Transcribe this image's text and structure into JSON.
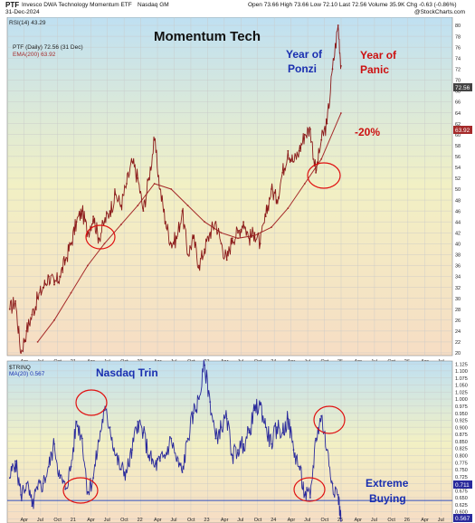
{
  "header": {
    "symbol": "PTF",
    "security_name": "Invesco DWA Technology Momentum ETF",
    "exchange": "Nasdaq GM",
    "date": "31-Dec-2024",
    "stats": "Open 73.66  High 73.66  Low 72.10  Last 72.56  Volume 35.9K  Chg -0.63 (-0.86%)",
    "credit": "@StockCharts.com"
  },
  "top_panel": {
    "rsi_label": "RSI(14) 43.29",
    "ptf_label": "PTF (Daily) 72.56 (31 Dec)",
    "ema_label": "EMA(200) 63.92",
    "price_tag": "72.56",
    "ema_tag": "63.92"
  },
  "bottom_panel": {
    "trin_label": "$TRINQ",
    "ma_label": "MA(20) 0.567",
    "last_tag": "0.711",
    "low_tag": "0.567"
  },
  "annotations": {
    "title": "Momentum Tech",
    "year_of_ponzi_1": "Year of",
    "year_of_ponzi_2": "Ponzi",
    "year_of_panic_1": "Year of",
    "year_of_panic_2": "Panic",
    "minus20": "-20%",
    "nasdaq_trin": "Nasdaq Trin",
    "extreme": "Extreme",
    "buying": "Buying"
  },
  "colors": {
    "price_line": "#8b1a1a",
    "ema_line": "#a52a2a",
    "trin_line": "#2a2a9c",
    "circle": "#e01010",
    "blue_text": "#1a2fb0",
    "red_text": "#cc1111",
    "hline": "#3050c0"
  },
  "chart_data": [
    {
      "type": "line",
      "title": "Momentum Tech",
      "x_ticks": [
        "Apr",
        "Jul",
        "Oct",
        "21",
        "Apr",
        "Jul",
        "Oct",
        "22",
        "Apr",
        "Jul",
        "Oct",
        "23",
        "Apr",
        "Jul",
        "Oct",
        "24",
        "Apr",
        "Jul",
        "Oct",
        "25",
        "Apr",
        "Jul",
        "Oct",
        "26",
        "Apr",
        "Jul"
      ],
      "y_ticks": [
        20,
        22,
        24,
        26,
        28,
        30,
        32,
        34,
        36,
        38,
        40,
        42,
        44,
        46,
        48,
        50,
        52,
        54,
        56,
        58,
        60,
        62,
        64,
        66,
        68,
        70,
        72,
        74,
        76,
        78,
        80
      ],
      "ylim": [
        19.5,
        81.5
      ],
      "x_range": [
        "2020-01",
        "2026-09"
      ],
      "series": [
        {
          "name": "PTF (Daily)",
          "points": [
            [
              "2020-01",
              28
            ],
            [
              "2020-02",
              29.5
            ],
            [
              "2020-03",
              20
            ],
            [
              "2020-04",
              24
            ],
            [
              "2020-05",
              27
            ],
            [
              "2020-06",
              30
            ],
            [
              "2020-07",
              32
            ],
            [
              "2020-08",
              34
            ],
            [
              "2020-09",
              32.5
            ],
            [
              "2020-10",
              34
            ],
            [
              "2020-11",
              37
            ],
            [
              "2020-12",
              40
            ],
            [
              "2021-01",
              44
            ],
            [
              "2021-02",
              46
            ],
            [
              "2021-03",
              42
            ],
            [
              "2021-04",
              45
            ],
            [
              "2021-05",
              41
            ],
            [
              "2021-06",
              44
            ],
            [
              "2021-07",
              46
            ],
            [
              "2021-08",
              49
            ],
            [
              "2021-09",
              47
            ],
            [
              "2021-10",
              51
            ],
            [
              "2021-11",
              55
            ],
            [
              "2021-12",
              52
            ],
            [
              "2022-01",
              46
            ],
            [
              "2022-02",
              52
            ],
            [
              "2022-03",
              59
            ],
            [
              "2022-04",
              50
            ],
            [
              "2022-05",
              44
            ],
            [
              "2022-06",
              40
            ],
            [
              "2022-07",
              41
            ],
            [
              "2022-08",
              46
            ],
            [
              "2022-09",
              38
            ],
            [
              "2022-10",
              41
            ],
            [
              "2022-11",
              36
            ],
            [
              "2022-12",
              39
            ],
            [
              "2023-01",
              42
            ],
            [
              "2023-02",
              44
            ],
            [
              "2023-03",
              40
            ],
            [
              "2023-04",
              37
            ],
            [
              "2023-05",
              41
            ],
            [
              "2023-06",
              42
            ],
            [
              "2023-07",
              44
            ],
            [
              "2023-08",
              41
            ],
            [
              "2023-09",
              42
            ],
            [
              "2023-10",
              40
            ],
            [
              "2023-11",
              45
            ],
            [
              "2023-12",
              50
            ],
            [
              "2024-01",
              48
            ],
            [
              "2024-02",
              53
            ],
            [
              "2024-03",
              57
            ],
            [
              "2024-04",
              55
            ],
            [
              "2024-05",
              57
            ],
            [
              "2024-06",
              60
            ],
            [
              "2024-07",
              61
            ],
            [
              "2024-08",
              53
            ],
            [
              "2024-09",
              59
            ],
            [
              "2024-10",
              62
            ],
            [
              "2024-11",
              72
            ],
            [
              "2024-12",
              80
            ],
            [
              "2024-12-31",
              72.56
            ]
          ]
        },
        {
          "name": "EMA(200)",
          "points": [
            [
              "2020-06",
              22
            ],
            [
              "2020-09",
              26
            ],
            [
              "2020-12",
              31
            ],
            [
              "2021-03",
              36
            ],
            [
              "2021-06",
              40
            ],
            [
              "2021-09",
              43.5
            ],
            [
              "2021-12",
              47
            ],
            [
              "2022-03",
              51
            ],
            [
              "2022-06",
              50
            ],
            [
              "2022-09",
              47
            ],
            [
              "2022-12",
              44
            ],
            [
              "2023-03",
              42
            ],
            [
              "2023-06",
              41
            ],
            [
              "2023-09",
              41.5
            ],
            [
              "2023-12",
              43
            ],
            [
              "2024-03",
              46.5
            ],
            [
              "2024-06",
              51
            ],
            [
              "2024-09",
              55.5
            ],
            [
              "2024-12-31",
              63.92
            ]
          ]
        }
      ]
    },
    {
      "type": "line",
      "title": "",
      "y_ticks": [
        0.575,
        0.6,
        0.625,
        0.65,
        0.675,
        0.7,
        0.725,
        0.75,
        0.775,
        0.8,
        0.825,
        0.85,
        0.875,
        0.9,
        0.925,
        0.95,
        0.975,
        1.0,
        1.025,
        1.05,
        1.075,
        1.1,
        1.125
      ],
      "ylim": [
        0.56,
        1.135
      ],
      "x_range": [
        "2020-01",
        "2026-09"
      ],
      "series": [
        {
          "name": "MA(20)",
          "points": [
            [
              "2020-01",
              0.72
            ],
            [
              "2020-02",
              0.78
            ],
            [
              "2020-03",
              0.66
            ],
            [
              "2020-04",
              0.7
            ],
            [
              "2020-05",
              0.62
            ],
            [
              "2020-06",
              0.68
            ],
            [
              "2020-07",
              0.7
            ],
            [
              "2020-08",
              0.76
            ],
            [
              "2020-09",
              0.84
            ],
            [
              "2020-10",
              0.72
            ],
            [
              "2020-11",
              0.68
            ],
            [
              "2020-12",
              0.76
            ],
            [
              "2021-01",
              0.92
            ],
            [
              "2021-02",
              0.86
            ],
            [
              "2021-03",
              0.67
            ],
            [
              "2021-04",
              0.72
            ],
            [
              "2021-05",
              0.85
            ],
            [
              "2021-06",
              0.96
            ],
            [
              "2021-07",
              0.9
            ],
            [
              "2021-08",
              0.8
            ],
            [
              "2021-09",
              0.75
            ],
            [
              "2021-10",
              0.74
            ],
            [
              "2021-11",
              0.82
            ],
            [
              "2021-12",
              0.92
            ],
            [
              "2022-01",
              0.88
            ],
            [
              "2022-02",
              0.8
            ],
            [
              "2022-03",
              0.76
            ],
            [
              "2022-04",
              0.78
            ],
            [
              "2022-05",
              0.8
            ],
            [
              "2022-06",
              0.86
            ],
            [
              "2022-07",
              0.78
            ],
            [
              "2022-08",
              0.74
            ],
            [
              "2022-09",
              0.86
            ],
            [
              "2022-10",
              0.95
            ],
            [
              "2022-11",
              1.0
            ],
            [
              "2022-12",
              1.12
            ],
            [
              "2023-01",
              0.99
            ],
            [
              "2023-02",
              0.86
            ],
            [
              "2023-03",
              0.9
            ],
            [
              "2023-04",
              0.93
            ],
            [
              "2023-05",
              0.8
            ],
            [
              "2023-06",
              0.82
            ],
            [
              "2023-07",
              0.84
            ],
            [
              "2023-08",
              0.88
            ],
            [
              "2023-09",
              0.96
            ],
            [
              "2023-10",
              0.98
            ],
            [
              "2023-11",
              0.9
            ],
            [
              "2023-12",
              0.84
            ],
            [
              "2024-01",
              0.9
            ],
            [
              "2024-02",
              0.88
            ],
            [
              "2024-03",
              0.93
            ],
            [
              "2024-04",
              0.82
            ],
            [
              "2024-05",
              0.76
            ],
            [
              "2024-06",
              0.66
            ],
            [
              "2024-07",
              0.65
            ],
            [
              "2024-08",
              0.86
            ],
            [
              "2024-09",
              0.94
            ],
            [
              "2024-10",
              0.82
            ],
            [
              "2024-11",
              0.7
            ],
            [
              "2024-12",
              0.66
            ],
            [
              "2024-12-31",
              0.567
            ]
          ]
        }
      ],
      "reference_line": 0.64
    }
  ]
}
